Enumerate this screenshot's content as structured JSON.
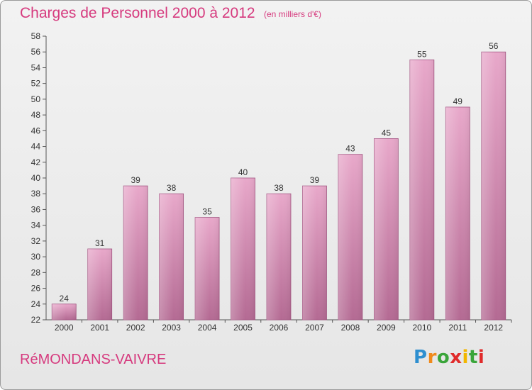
{
  "header": {
    "title": "Charges de Personnel 2000 à 2012",
    "subtitle": "(en milliers d'€)"
  },
  "footer": {
    "commune": "RéMONDANS-VAIVRE",
    "logo_text": "Proxiti"
  },
  "chart_data": {
    "type": "bar",
    "title": "Charges de Personnel 2000 à 2012",
    "subtitle": "(en milliers d'€)",
    "xlabel": "",
    "ylabel": "",
    "categories": [
      "2000",
      "2001",
      "2002",
      "2003",
      "2004",
      "2005",
      "2006",
      "2007",
      "2008",
      "2009",
      "2010",
      "2011",
      "2012"
    ],
    "values": [
      24,
      31,
      39,
      38,
      35,
      40,
      38,
      39,
      43,
      45,
      55,
      49,
      56
    ],
    "ylim": [
      22,
      58
    ],
    "yticks": [
      22,
      24,
      26,
      28,
      30,
      32,
      34,
      36,
      38,
      40,
      42,
      44,
      46,
      48,
      50,
      52,
      54,
      56,
      58
    ],
    "grid": false,
    "bar_color": "#c9729f",
    "legend": "none"
  }
}
